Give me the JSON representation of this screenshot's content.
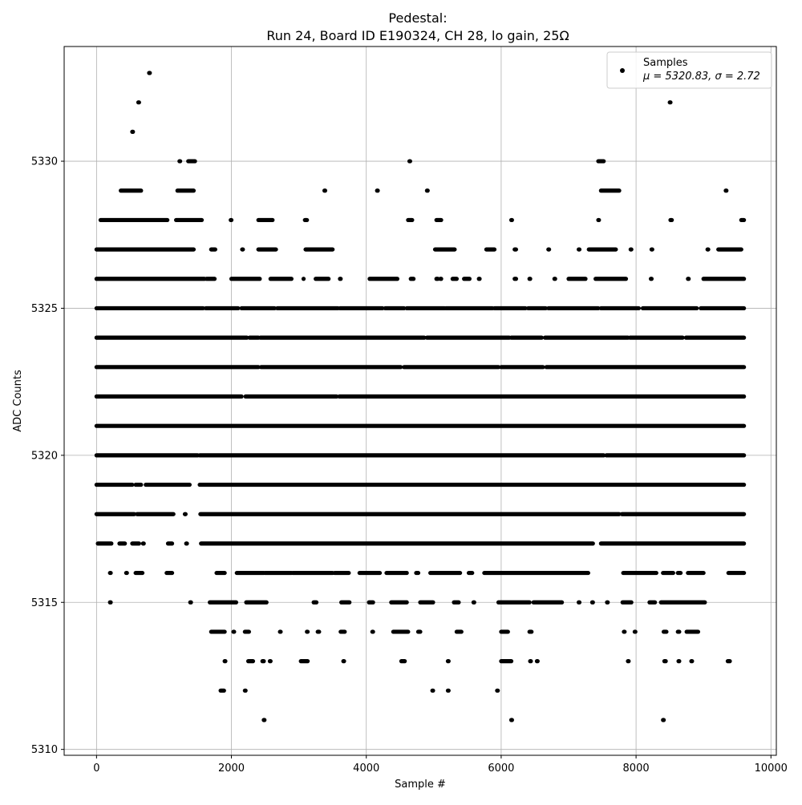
{
  "chart_data": {
    "type": "scatter",
    "title": "Pedestal:",
    "subtitle": "Run 24, Board ID E190324, CH 28, lo gain, 25Ω",
    "xlabel": "Sample #",
    "ylabel": "ADC Counts",
    "xlim": [
      -480,
      10080
    ],
    "ylim": [
      5309.8,
      5333.9
    ],
    "x_ticks": [
      0,
      2000,
      4000,
      6000,
      8000,
      10000
    ],
    "y_ticks": [
      5310,
      5315,
      5320,
      5325,
      5330
    ],
    "grid": true,
    "legend": {
      "position": "top-right",
      "label": "Samples",
      "stats": "μ = 5320.83, σ = 2.72"
    },
    "marker_color": "#000000",
    "series": [
      {
        "name": "Samples",
        "n_samples": 9600,
        "mean": 5320.83,
        "std": 2.72,
        "level_ranges": [
          {
            "y": 5333,
            "x": [
              [
                780,
                790
              ]
            ]
          },
          {
            "y": 5332,
            "x": [
              [
                620,
                630
              ],
              [
                8500,
                8510
              ]
            ]
          },
          {
            "y": 5331,
            "x": [
              [
                530,
                540
              ]
            ]
          },
          {
            "y": 5330,
            "x": [
              [
                1230,
                1240
              ],
              [
                1360,
                1460
              ],
              [
                4640,
                4650
              ],
              [
                7440,
                7520
              ]
            ]
          },
          {
            "y": 5329,
            "x": [
              [
                360,
                660
              ],
              [
                1200,
                1440
              ],
              [
                3380,
                3390
              ],
              [
                4160,
                4170
              ],
              [
                4900,
                4910
              ],
              [
                7480,
                7750
              ],
              [
                9330,
                9340
              ]
            ]
          },
          {
            "y": 5328,
            "x": [
              [
                60,
                1050
              ],
              [
                1180,
                1560
              ],
              [
                1990,
                2000
              ],
              [
                2400,
                2610
              ],
              [
                3090,
                3120
              ],
              [
                4620,
                4680
              ],
              [
                5040,
                5110
              ],
              [
                6150,
                6160
              ],
              [
                7440,
                7450
              ],
              [
                8510,
                8530
              ],
              [
                9560,
                9600
              ]
            ]
          },
          {
            "y": 5327,
            "x": [
              [
                0,
                1440
              ],
              [
                1700,
                1760
              ],
              [
                2160,
                2170
              ],
              [
                2400,
                2660
              ],
              [
                3100,
                3500
              ],
              [
                5020,
                5310
              ],
              [
                5780,
                5900
              ],
              [
                6200,
                6220
              ],
              [
                6700,
                6710
              ],
              [
                7150,
                7160
              ],
              [
                7300,
                7700
              ],
              [
                7920,
                7930
              ],
              [
                8230,
                8240
              ],
              [
                9060,
                9070
              ],
              [
                9220,
                9560
              ]
            ]
          },
          {
            "y": 5326,
            "x": [
              [
                0,
                1600
              ],
              [
                1630,
                1750
              ],
              [
                2000,
                2420
              ],
              [
                2580,
                2890
              ],
              [
                3070,
                3070
              ],
              [
                3250,
                3440
              ],
              [
                3610,
                3620
              ],
              [
                4050,
                4460
              ],
              [
                4660,
                4700
              ],
              [
                5040,
                5060
              ],
              [
                5100,
                5110
              ],
              [
                5280,
                5340
              ],
              [
                5450,
                5530
              ],
              [
                5670,
                5680
              ],
              [
                6200,
                6220
              ],
              [
                6420,
                6430
              ],
              [
                6790,
                6800
              ],
              [
                7000,
                7250
              ],
              [
                7400,
                7850
              ],
              [
                8220,
                8230
              ],
              [
                8770,
                8780
              ],
              [
                9000,
                9600
              ]
            ]
          },
          {
            "y": 5325,
            "x": [
              [
                0,
                1580
              ],
              [
                1620,
                2100
              ],
              [
                2150,
                2640
              ],
              [
                2680,
                3580
              ],
              [
                3610,
                4240
              ],
              [
                4280,
                4560
              ],
              [
                4600,
                5160
              ],
              [
                5180,
                5870
              ],
              [
                5900,
                6360
              ],
              [
                6400,
                6660
              ],
              [
                6700,
                7440
              ],
              [
                7480,
                8040
              ],
              [
                8100,
                8900
              ],
              [
                8960,
                9600
              ]
            ]
          },
          {
            "y": 5324,
            "x": [
              [
                0,
                2230
              ],
              [
                2270,
                2400
              ],
              [
                2430,
                4860
              ],
              [
                4900,
                6120
              ],
              [
                6150,
                6600
              ],
              [
                6650,
                7880
              ],
              [
                7910,
                8690
              ],
              [
                8740,
                9600
              ]
            ]
          },
          {
            "y": 5323,
            "x": [
              [
                0,
                2400
              ],
              [
                2440,
                4510
              ],
              [
                4560,
                5960
              ],
              [
                6000,
                6620
              ],
              [
                6670,
                9600
              ]
            ]
          },
          {
            "y": 5322,
            "x": [
              [
                0,
                2150
              ],
              [
                2210,
                3560
              ],
              [
                3600,
                9600
              ]
            ]
          },
          {
            "y": 5321,
            "x": [
              [
                0,
                9600
              ]
            ]
          },
          {
            "y": 5320,
            "x": [
              [
                0,
                1500
              ],
              [
                1530,
                7520
              ],
              [
                7560,
                9600
              ]
            ]
          },
          {
            "y": 5319,
            "x": [
              [
                0,
                530
              ],
              [
                580,
                660
              ],
              [
                730,
                1380
              ],
              [
                1530,
                9600
              ]
            ]
          },
          {
            "y": 5318,
            "x": [
              [
                0,
                560
              ],
              [
                600,
                1140
              ],
              [
                1310,
                1320
              ],
              [
                1540,
                7750
              ],
              [
                7790,
                9600
              ]
            ]
          },
          {
            "y": 5317,
            "x": [
              [
                20,
                220
              ],
              [
                340,
                420
              ],
              [
                530,
                630
              ],
              [
                690,
                700
              ],
              [
                1060,
                1120
              ],
              [
                1330,
                1340
              ],
              [
                1550,
                7360
              ],
              [
                7480,
                9600
              ]
            ]
          },
          {
            "y": 5316,
            "x": [
              [
                200,
                210
              ],
              [
                440,
                450
              ],
              [
                580,
                680
              ],
              [
                1040,
                1120
              ],
              [
                1780,
                1900
              ],
              [
                2080,
                2480
              ],
              [
                2500,
                2890
              ],
              [
                2910,
                3500
              ],
              [
                3530,
                3740
              ],
              [
                3900,
                4200
              ],
              [
                4300,
                4600
              ],
              [
                4740,
                4770
              ],
              [
                4950,
                5390
              ],
              [
                5520,
                5570
              ],
              [
                5750,
                7290
              ],
              [
                7810,
                8300
              ],
              [
                8400,
                8550
              ],
              [
                8620,
                8660
              ],
              [
                8770,
                9000
              ],
              [
                9370,
                9600
              ]
            ]
          },
          {
            "y": 5315,
            "x": [
              [
                200,
                210
              ],
              [
                1390,
                1400
              ],
              [
                1680,
                2070
              ],
              [
                2220,
                2520
              ],
              [
                3220,
                3260
              ],
              [
                3630,
                3750
              ],
              [
                4040,
                4100
              ],
              [
                4370,
                4600
              ],
              [
                4800,
                4990
              ],
              [
                5300,
                5370
              ],
              [
                5590,
                5600
              ],
              [
                5960,
                6420
              ],
              [
                6480,
                6900
              ],
              [
                7150,
                7160
              ],
              [
                7350,
                7360
              ],
              [
                7570,
                7580
              ],
              [
                7800,
                7930
              ],
              [
                8200,
                8280
              ],
              [
                8370,
                9020
              ]
            ]
          },
          {
            "y": 5314,
            "x": [
              [
                1700,
                1900
              ],
              [
                2030,
                2040
              ],
              [
                2200,
                2260
              ],
              [
                2720,
                2730
              ],
              [
                3120,
                3130
              ],
              [
                3280,
                3300
              ],
              [
                3620,
                3680
              ],
              [
                4090,
                4100
              ],
              [
                4400,
                4620
              ],
              [
                4770,
                4800
              ],
              [
                5340,
                5410
              ],
              [
                6000,
                6100
              ],
              [
                6420,
                6450
              ],
              [
                7820,
                7830
              ],
              [
                7980,
                7990
              ],
              [
                8410,
                8450
              ],
              [
                8620,
                8640
              ],
              [
                8750,
                8920
              ]
            ]
          },
          {
            "y": 5313,
            "x": [
              [
                1900,
                1910
              ],
              [
                2250,
                2320
              ],
              [
                2460,
                2480
              ],
              [
                2570,
                2580
              ],
              [
                3030,
                3130
              ],
              [
                3660,
                3670
              ],
              [
                4520,
                4570
              ],
              [
                5210,
                5220
              ],
              [
                6000,
                6150
              ],
              [
                6430,
                6440
              ],
              [
                6530,
                6540
              ],
              [
                7880,
                7890
              ],
              [
                8420,
                8440
              ],
              [
                8630,
                8640
              ],
              [
                8820,
                8830
              ],
              [
                9360,
                9390
              ]
            ]
          },
          {
            "y": 5312,
            "x": [
              [
                1840,
                1890
              ],
              [
                2200,
                2210
              ],
              [
                4980,
                4990
              ],
              [
                5210,
                5220
              ],
              [
                5940,
                5950
              ]
            ]
          },
          {
            "y": 5311,
            "x": [
              [
                2480,
                2490
              ],
              [
                6150,
                6160
              ],
              [
                8400,
                8410
              ]
            ]
          }
        ]
      }
    ]
  }
}
